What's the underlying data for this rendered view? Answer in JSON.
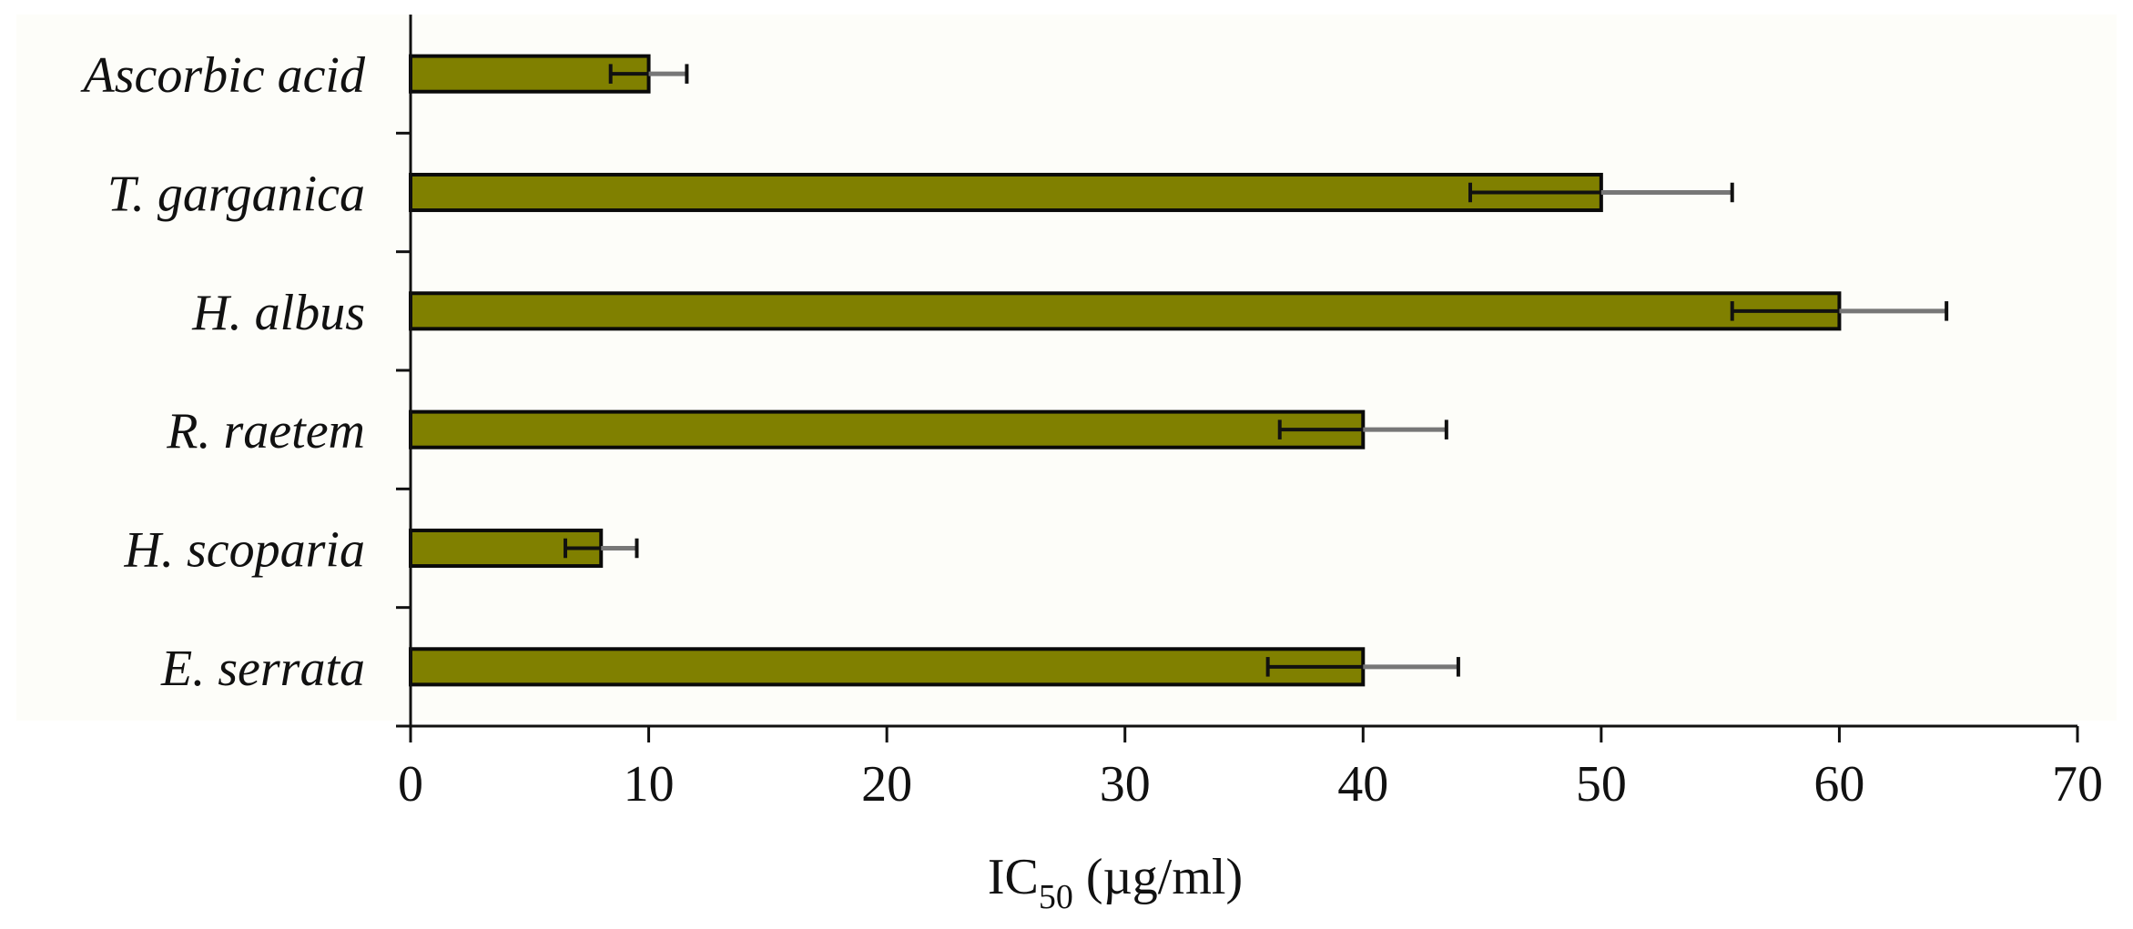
{
  "chart_data": {
    "type": "bar",
    "orientation": "horizontal",
    "categories": [
      "Ascorbic acid",
      "T. garganica",
      "H. albus",
      "R. raetem",
      "H. scoparia",
      "E. serrata"
    ],
    "values": [
      10,
      50,
      60,
      40,
      8,
      40
    ],
    "error_bars": [
      {
        "low": 8.4,
        "high": 11.6
      },
      {
        "low": 44.5,
        "high": 55.5
      },
      {
        "low": 55.5,
        "high": 64.5
      },
      {
        "low": 36.5,
        "high": 43.5
      },
      {
        "low": 6.5,
        "high": 9.5
      },
      {
        "low": 36.0,
        "high": 44.0
      }
    ],
    "xlabel": {
      "main": "IC",
      "subscript": "50",
      "unit": " (µg/ml)"
    },
    "xlim": [
      0,
      70
    ],
    "xticks": [
      0,
      10,
      20,
      30,
      40,
      50,
      60,
      70
    ],
    "grid": false,
    "legend": "none",
    "colors": {
      "bar_fill": "#808000",
      "bar_stroke": "#0a0a0a",
      "axis": "#111111",
      "plot_background": "#fdfdf9"
    }
  }
}
